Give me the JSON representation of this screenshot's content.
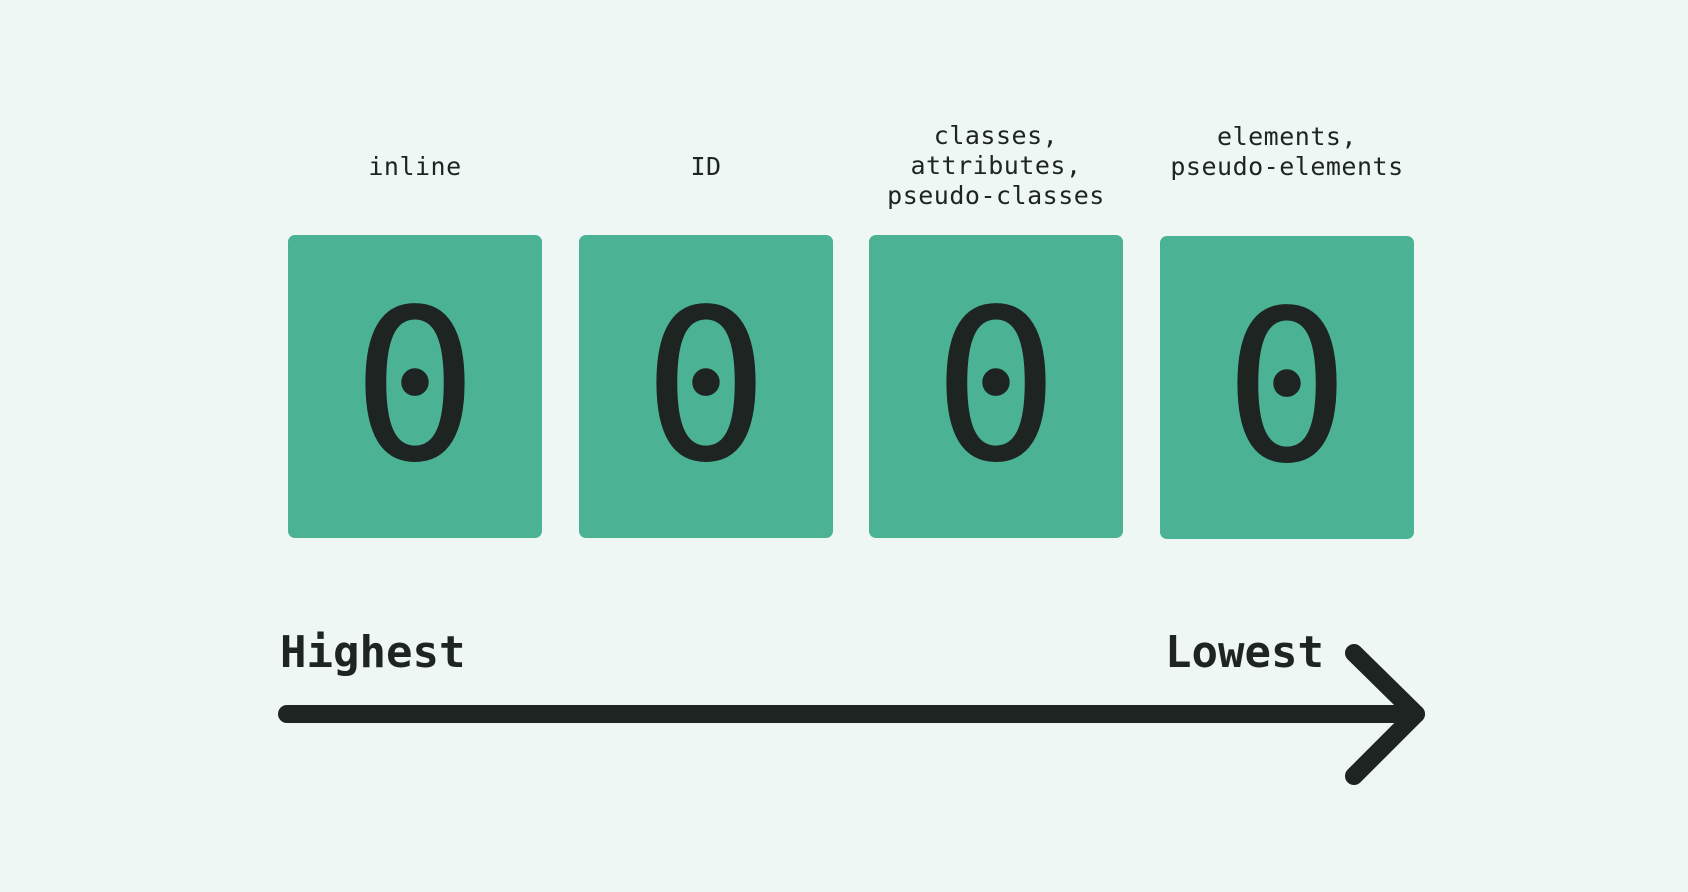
{
  "colors": {
    "background": "#eef7f3",
    "box": "#4bb394",
    "ink": "#1d2421"
  },
  "columns": [
    {
      "label": "inline",
      "value": "0"
    },
    {
      "label": "ID",
      "value": "0"
    },
    {
      "label": "classes,\nattributes,\npseudo-classes",
      "value": "0"
    },
    {
      "label": "elements,\npseudo-elements",
      "value": "0"
    }
  ],
  "scale": {
    "start_label": "Highest",
    "end_label": "Lowest"
  }
}
